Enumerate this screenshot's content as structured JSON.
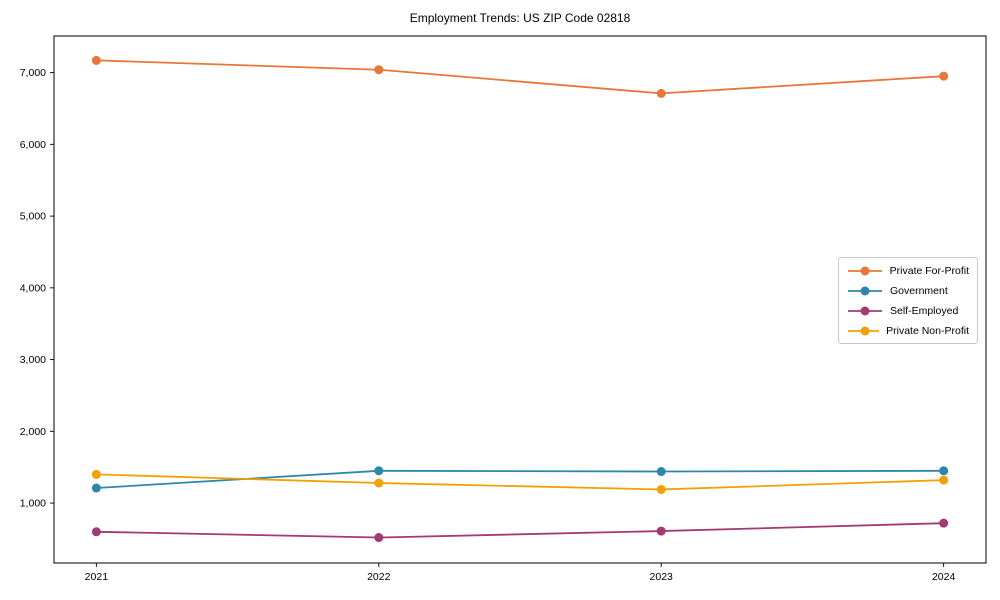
{
  "figure": {
    "title": "Employment Trends: US ZIP Code 02818"
  },
  "chart_data": {
    "type": "line",
    "title": "Employment Trends: US ZIP Code 02818",
    "xlabel": "",
    "ylabel": "",
    "grid": false,
    "legend_position": "center-right",
    "marker": "circle",
    "x": [
      2021,
      2022,
      2023,
      2024
    ],
    "x_tick_labels": [
      "2021",
      "2022",
      "2023",
      "2024"
    ],
    "y_ticks": [
      1000,
      2000,
      3000,
      4000,
      5000,
      6000,
      7000
    ],
    "y_tick_labels": [
      "1,000",
      "2,000",
      "3,000",
      "4,000",
      "5,000",
      "6,000",
      "7,000"
    ],
    "xlim": [
      2020.85,
      2024.15
    ],
    "ylim": [
      165,
      7510
    ],
    "series": [
      {
        "name": "Private For-Profit",
        "color": "#E8763B",
        "values": [
          7170,
          7040,
          6710,
          6950
        ]
      },
      {
        "name": "Government",
        "color": "#2E86AB",
        "values": [
          1210,
          1450,
          1440,
          1450
        ]
      },
      {
        "name": "Self-Employed",
        "color": "#A23B72",
        "values": [
          600,
          520,
          610,
          720
        ]
      },
      {
        "name": "Private Non-Profit",
        "color": "#F2A104",
        "values": [
          1400,
          1280,
          1190,
          1320
        ]
      }
    ],
    "colors": {
      "spine": "#000000",
      "background": "#ffffff",
      "text": "#000000"
    }
  }
}
